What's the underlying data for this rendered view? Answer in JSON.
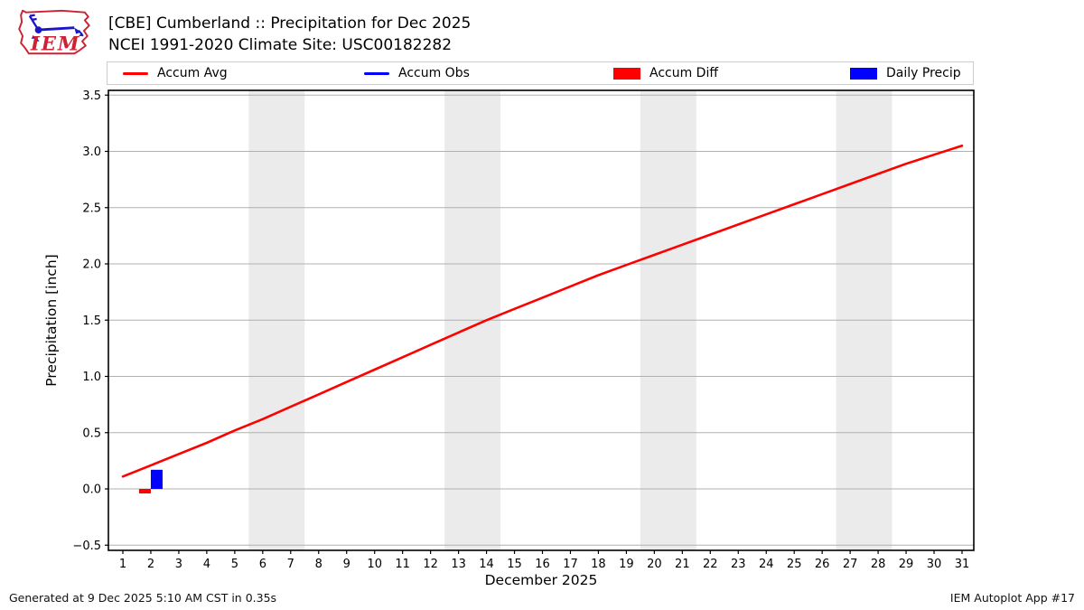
{
  "header": {
    "logo_text": "IEM",
    "title_line1": "[CBE] Cumberland :: Precipitation for Dec 2025",
    "title_line2": "NCEI 1991-2020 Climate Site: USC00182282"
  },
  "legend": {
    "items": [
      {
        "label": "Accum Avg",
        "swatch": "line",
        "color": "#ff0000"
      },
      {
        "label": "Accum Obs",
        "swatch": "line",
        "color": "#0000ff"
      },
      {
        "label": "Accum Diff",
        "swatch": "rect",
        "color": "#ff0000"
      },
      {
        "label": "Daily Precip",
        "swatch": "rect",
        "color": "#0000ff"
      }
    ]
  },
  "footer": {
    "left": "Generated at 9 Dec 2025 5:10 AM CST in 0.35s",
    "right": "IEM Autoplot App #17"
  },
  "colors": {
    "accum_avg": "#ff0000",
    "accum_obs": "#0000ff",
    "weekend_band": "#ebebeb",
    "gridline": "#b0b0b0",
    "logo_red": "#cc2233",
    "logo_blue": "#1a16c8"
  },
  "chart_data": {
    "type": "line",
    "title": "",
    "xlabel": "December 2025",
    "ylabel": "Precipitation [inch]",
    "xlim": [
      0.48,
      31.42
    ],
    "ylim": [
      -0.55,
      3.55
    ],
    "grid": true,
    "grid_color": "#b0b0b0",
    "x": [
      1,
      2,
      3,
      4,
      5,
      6,
      7,
      8,
      9,
      10,
      11,
      12,
      13,
      14,
      15,
      16,
      17,
      18,
      19,
      20,
      21,
      22,
      23,
      24,
      25,
      26,
      27,
      28,
      29,
      30,
      31
    ],
    "xticks": [
      1,
      2,
      3,
      4,
      5,
      6,
      7,
      8,
      9,
      10,
      11,
      12,
      13,
      14,
      15,
      16,
      17,
      18,
      19,
      20,
      21,
      22,
      23,
      24,
      25,
      26,
      27,
      28,
      29,
      30,
      31
    ],
    "yticks": [
      -0.5,
      0.0,
      0.5,
      1.0,
      1.5,
      2.0,
      2.5,
      3.0,
      3.5
    ],
    "ytick_labels": [
      "−0.5",
      "0.0",
      "0.5",
      "1.0",
      "1.5",
      "2.0",
      "2.5",
      "3.0",
      "3.5"
    ],
    "weekend_shading": {
      "color": "#ebebeb",
      "ranges": [
        [
          5.5,
          7.5
        ],
        [
          12.5,
          14.5
        ],
        [
          19.5,
          21.5
        ],
        [
          26.5,
          28.5
        ]
      ]
    },
    "series": [
      {
        "name": "Accum Avg",
        "type": "line",
        "color": "#ff0000",
        "values": [
          0.11,
          0.21,
          0.31,
          0.41,
          0.52,
          0.62,
          0.73,
          0.84,
          0.95,
          1.06,
          1.17,
          1.28,
          1.39,
          1.5,
          1.6,
          1.7,
          1.8,
          1.9,
          1.99,
          2.08,
          2.17,
          2.26,
          2.35,
          2.44,
          2.53,
          2.62,
          2.71,
          2.8,
          2.89,
          2.97,
          3.05
        ]
      },
      {
        "name": "Accum Obs",
        "type": "line",
        "color": "#0000ff",
        "values": []
      },
      {
        "name": "Accum Diff",
        "type": "bar",
        "color": "#ff0000",
        "bar_width": 0.42,
        "bar_offset": -0.21,
        "points": [
          {
            "x": 2,
            "value": -0.04
          }
        ]
      },
      {
        "name": "Daily Precip",
        "type": "bar",
        "color": "#0000ff",
        "bar_width": 0.42,
        "bar_offset": 0.21,
        "points": [
          {
            "x": 2,
            "value": 0.17
          }
        ]
      }
    ]
  }
}
